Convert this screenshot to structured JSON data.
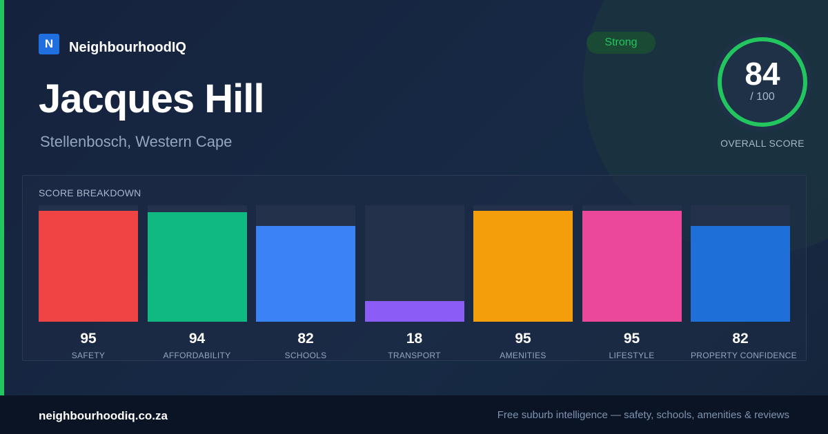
{
  "brand": {
    "logo_letter": "N",
    "name": "NeighbourhoodIQ"
  },
  "suburb": {
    "name": "Jacques Hill",
    "location": "Stellenbosch, Western Cape"
  },
  "rating": {
    "badge": "Strong",
    "score": "84",
    "out_of": "/ 100",
    "label": "OVERALL SCORE",
    "fraction": 0.84
  },
  "colors": {
    "accent": "#22c55e",
    "ring_track": "#243a4c"
  },
  "breakdown": {
    "title": "SCORE BREAKDOWN",
    "items": [
      {
        "label": "SAFETY",
        "value": 95,
        "color": "#ef4444"
      },
      {
        "label": "AFFORDABILITY",
        "value": 94,
        "color": "#10b981"
      },
      {
        "label": "SCHOOLS",
        "value": 82,
        "color": "#3b82f6"
      },
      {
        "label": "TRANSPORT",
        "value": 18,
        "color": "#8b5cf6"
      },
      {
        "label": "AMENITIES",
        "value": 95,
        "color": "#f59e0b"
      },
      {
        "label": "LIFESTYLE",
        "value": 95,
        "color": "#ec4899"
      },
      {
        "label": "PROPERTY CONFIDENCE",
        "value": 82,
        "color": "#1f6fd9"
      }
    ]
  },
  "footer": {
    "domain": "neighbourhoodiq.co.za",
    "tagline": "Free suburb intelligence — safety, schools, amenities & reviews"
  }
}
